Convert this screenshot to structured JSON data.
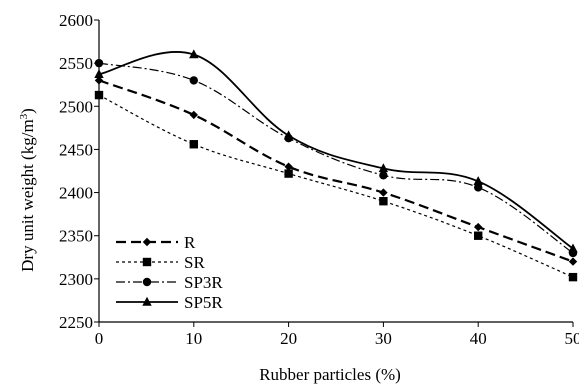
{
  "chart_data": {
    "type": "line",
    "title": "",
    "xlabel": "Rubber particles (%)",
    "ylabel": "Dry unit weight (kg/m",
    "ylabel_superscript": "3",
    "ylabel_suffix": ")",
    "xlim": [
      0,
      50
    ],
    "ylim": [
      2250,
      2600
    ],
    "x_ticks": [
      0,
      10,
      20,
      30,
      40,
      50
    ],
    "y_ticks": [
      2250,
      2300,
      2350,
      2400,
      2450,
      2500,
      2550,
      2600
    ],
    "x_tick_labels": [
      "0",
      "10",
      "20",
      "30",
      "40",
      "50"
    ],
    "y_tick_labels": [
      "2250",
      "2300",
      "2350",
      "2400",
      "2450",
      "2500",
      "2550",
      "2600"
    ],
    "grid": false,
    "legend_position": "bottom-left",
    "x": [
      0,
      10,
      20,
      30,
      40,
      50
    ],
    "series": [
      {
        "name": "R",
        "values": [
          2530,
          2490,
          2430,
          2400,
          2360,
          2320
        ],
        "marker": "diamond",
        "dash": "long-dash",
        "color": "#000000"
      },
      {
        "name": "SR",
        "values": [
          2513,
          2456,
          2422,
          2390,
          2350,
          2302
        ],
        "marker": "square",
        "dash": "short-dash",
        "color": "#000000"
      },
      {
        "name": "SP3R",
        "values": [
          2550,
          2530,
          2463,
          2420,
          2406,
          2330
        ],
        "marker": "circle",
        "dash": "dash-dot",
        "color": "#000000"
      },
      {
        "name": "SP5R",
        "values": [
          2537,
          2560,
          2466,
          2428,
          2413,
          2335
        ],
        "marker": "triangle",
        "dash": "solid",
        "color": "#000000"
      }
    ]
  }
}
